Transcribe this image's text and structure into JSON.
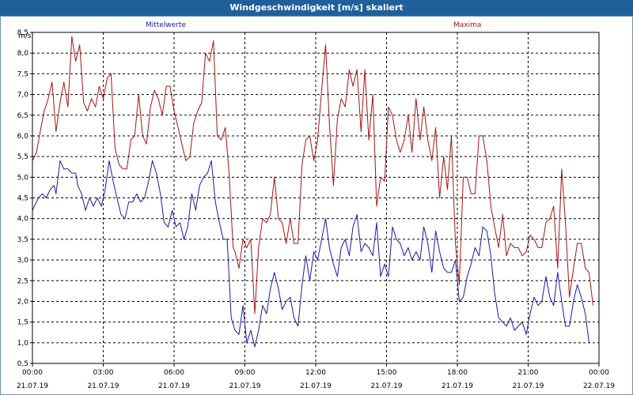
{
  "title": "Windgeschwindigkeit [m/s] skaliert",
  "chart_data": {
    "type": "line",
    "ylabel": "m/s",
    "ylim": [
      0.5,
      8.5
    ],
    "xlim": [
      0,
      24
    ],
    "grid": true,
    "yticks": [
      "8,5",
      "8,0",
      "7,5",
      "7,0",
      "6,5",
      "6,0",
      "5,5",
      "5,0",
      "4,5",
      "4,0",
      "3,5",
      "3,0",
      "2,5",
      "2,0",
      "1,5",
      "1,0",
      "0,5"
    ],
    "xticks": [
      {
        "time": "00:00",
        "date": "21.07.19"
      },
      {
        "time": "03:00",
        "date": "21.07.19"
      },
      {
        "time": "06:00",
        "date": "21.07.19"
      },
      {
        "time": "09:00",
        "date": "21.07.19"
      },
      {
        "time": "12:00",
        "date": "21.07.19"
      },
      {
        "time": "15:00",
        "date": "21.07.19"
      },
      {
        "time": "18:00",
        "date": "21.07.19"
      },
      {
        "time": "21:00",
        "date": "21.07.19"
      },
      {
        "time": "00:00",
        "date": "22.07.19"
      }
    ],
    "series": [
      {
        "name": "Mittelwerte",
        "color": "#1a1aa6",
        "points": [
          [
            0.0,
            4.2
          ],
          [
            0.25,
            4.5
          ],
          [
            0.42,
            4.6
          ],
          [
            0.58,
            4.5
          ],
          [
            0.75,
            4.7
          ],
          [
            0.92,
            4.8
          ],
          [
            1.0,
            4.6
          ],
          [
            1.17,
            5.4
          ],
          [
            1.33,
            5.2
          ],
          [
            1.5,
            5.2
          ],
          [
            1.67,
            5.1
          ],
          [
            1.83,
            5.1
          ],
          [
            1.92,
            4.8
          ],
          [
            2.08,
            4.6
          ],
          [
            2.25,
            4.2
          ],
          [
            2.42,
            4.5
          ],
          [
            2.58,
            4.3
          ],
          [
            2.75,
            4.5
          ],
          [
            2.92,
            4.3
          ],
          [
            3.08,
            4.7
          ],
          [
            3.25,
            5.4
          ],
          [
            3.42,
            4.9
          ],
          [
            3.58,
            4.5
          ],
          [
            3.75,
            4.1
          ],
          [
            3.92,
            4.0
          ],
          [
            4.08,
            4.4
          ],
          [
            4.25,
            4.4
          ],
          [
            4.42,
            4.6
          ],
          [
            4.58,
            4.4
          ],
          [
            4.75,
            4.5
          ],
          [
            4.92,
            4.9
          ],
          [
            5.08,
            5.4
          ],
          [
            5.25,
            5.1
          ],
          [
            5.42,
            4.6
          ],
          [
            5.58,
            3.9
          ],
          [
            5.75,
            3.8
          ],
          [
            5.92,
            4.2
          ],
          [
            6.08,
            3.8
          ],
          [
            6.25,
            3.9
          ],
          [
            6.42,
            3.5
          ],
          [
            6.58,
            3.8
          ],
          [
            6.75,
            4.6
          ],
          [
            6.92,
            4.2
          ],
          [
            7.08,
            4.8
          ],
          [
            7.25,
            5.0
          ],
          [
            7.42,
            5.1
          ],
          [
            7.58,
            5.4
          ],
          [
            7.75,
            4.4
          ],
          [
            7.92,
            3.9
          ],
          [
            8.08,
            3.5
          ],
          [
            8.25,
            3.5
          ],
          [
            8.42,
            1.6
          ],
          [
            8.58,
            1.3
          ],
          [
            8.75,
            1.2
          ],
          [
            8.92,
            1.9
          ],
          [
            9.08,
            1.0
          ],
          [
            9.25,
            1.3
          ],
          [
            9.42,
            0.9
          ],
          [
            9.58,
            1.3
          ],
          [
            9.75,
            1.9
          ],
          [
            9.92,
            1.7
          ],
          [
            10.08,
            2.3
          ],
          [
            10.25,
            2.7
          ],
          [
            10.42,
            2.3
          ],
          [
            10.58,
            1.8
          ],
          [
            10.75,
            2.0
          ],
          [
            10.92,
            2.1
          ],
          [
            11.08,
            1.6
          ],
          [
            11.25,
            1.4
          ],
          [
            11.42,
            2.4
          ],
          [
            11.58,
            3.1
          ],
          [
            11.75,
            2.5
          ],
          [
            11.92,
            3.2
          ],
          [
            12.08,
            3.0
          ],
          [
            12.25,
            3.5
          ],
          [
            12.42,
            4.0
          ],
          [
            12.58,
            3.3
          ],
          [
            12.75,
            2.9
          ],
          [
            12.92,
            2.6
          ],
          [
            13.08,
            3.3
          ],
          [
            13.25,
            3.5
          ],
          [
            13.42,
            3.1
          ],
          [
            13.58,
            3.8
          ],
          [
            13.75,
            4.1
          ],
          [
            13.92,
            3.2
          ],
          [
            14.08,
            3.4
          ],
          [
            14.25,
            3.3
          ],
          [
            14.42,
            3.1
          ],
          [
            14.58,
            3.9
          ],
          [
            14.75,
            2.6
          ],
          [
            14.92,
            2.9
          ],
          [
            15.08,
            2.6
          ],
          [
            15.25,
            3.8
          ],
          [
            15.42,
            3.5
          ],
          [
            15.58,
            3.4
          ],
          [
            15.75,
            3.1
          ],
          [
            15.92,
            3.3
          ],
          [
            16.08,
            3.0
          ],
          [
            16.25,
            3.2
          ],
          [
            16.42,
            3.0
          ],
          [
            16.58,
            3.8
          ],
          [
            16.75,
            3.4
          ],
          [
            16.92,
            2.7
          ],
          [
            17.08,
            3.7
          ],
          [
            17.25,
            3.2
          ],
          [
            17.42,
            2.8
          ],
          [
            17.58,
            2.7
          ],
          [
            17.75,
            2.7
          ],
          [
            17.92,
            3.0
          ],
          [
            18.08,
            2.0
          ],
          [
            18.25,
            2.1
          ],
          [
            18.42,
            2.6
          ],
          [
            18.58,
            2.9
          ],
          [
            18.75,
            3.3
          ],
          [
            18.92,
            3.1
          ],
          [
            19.08,
            3.8
          ],
          [
            19.25,
            3.7
          ],
          [
            19.42,
            3.1
          ],
          [
            19.58,
            2.2
          ],
          [
            19.75,
            1.6
          ],
          [
            19.92,
            1.5
          ],
          [
            20.08,
            1.4
          ],
          [
            20.25,
            1.6
          ],
          [
            20.42,
            1.3
          ],
          [
            20.58,
            1.4
          ],
          [
            20.75,
            1.5
          ],
          [
            20.92,
            1.2
          ],
          [
            21.08,
            1.7
          ],
          [
            21.25,
            2.1
          ],
          [
            21.42,
            1.9
          ],
          [
            21.58,
            2.0
          ],
          [
            21.75,
            2.6
          ],
          [
            21.92,
            2.1
          ],
          [
            22.08,
            1.9
          ],
          [
            22.25,
            2.7
          ],
          [
            22.42,
            2.0
          ],
          [
            22.58,
            1.4
          ],
          [
            22.75,
            1.4
          ],
          [
            22.92,
            2.0
          ],
          [
            23.08,
            2.4
          ],
          [
            23.25,
            2.1
          ],
          [
            23.42,
            1.7
          ],
          [
            23.58,
            1.0
          ]
        ]
      },
      {
        "name": "Maxima",
        "color": "#a31515",
        "points": [
          [
            0.0,
            5.4
          ],
          [
            0.17,
            5.6
          ],
          [
            0.33,
            6.1
          ],
          [
            0.5,
            6.6
          ],
          [
            0.67,
            6.9
          ],
          [
            0.83,
            7.3
          ],
          [
            1.0,
            6.1
          ],
          [
            1.17,
            6.8
          ],
          [
            1.33,
            7.3
          ],
          [
            1.5,
            6.7
          ],
          [
            1.67,
            8.4
          ],
          [
            1.83,
            7.8
          ],
          [
            2.0,
            8.2
          ],
          [
            2.17,
            6.8
          ],
          [
            2.33,
            6.6
          ],
          [
            2.5,
            6.9
          ],
          [
            2.67,
            6.7
          ],
          [
            2.83,
            7.2
          ],
          [
            3.0,
            6.9
          ],
          [
            3.17,
            7.4
          ],
          [
            3.33,
            7.5
          ],
          [
            3.5,
            5.7
          ],
          [
            3.67,
            5.3
          ],
          [
            3.83,
            5.2
          ],
          [
            4.0,
            5.2
          ],
          [
            4.17,
            5.9
          ],
          [
            4.33,
            6.0
          ],
          [
            4.5,
            7.0
          ],
          [
            4.67,
            6.0
          ],
          [
            4.83,
            5.8
          ],
          [
            5.0,
            6.7
          ],
          [
            5.17,
            7.1
          ],
          [
            5.33,
            6.9
          ],
          [
            5.5,
            6.5
          ],
          [
            5.67,
            7.2
          ],
          [
            5.83,
            7.2
          ],
          [
            6.0,
            6.6
          ],
          [
            6.17,
            6.2
          ],
          [
            6.33,
            5.8
          ],
          [
            6.5,
            5.4
          ],
          [
            6.67,
            5.5
          ],
          [
            6.83,
            6.3
          ],
          [
            7.0,
            6.6
          ],
          [
            7.17,
            6.8
          ],
          [
            7.33,
            8.0
          ],
          [
            7.5,
            7.8
          ],
          [
            7.67,
            8.3
          ],
          [
            7.83,
            6.0
          ],
          [
            8.0,
            5.9
          ],
          [
            8.17,
            6.2
          ],
          [
            8.33,
            5.1
          ],
          [
            8.5,
            3.3
          ],
          [
            8.58,
            3.2
          ],
          [
            8.75,
            2.8
          ],
          [
            8.92,
            3.5
          ],
          [
            9.08,
            3.3
          ],
          [
            9.25,
            3.5
          ],
          [
            9.42,
            1.7
          ],
          [
            9.58,
            3.3
          ],
          [
            9.75,
            4.0
          ],
          [
            9.92,
            3.9
          ],
          [
            10.08,
            4.1
          ],
          [
            10.25,
            5.0
          ],
          [
            10.42,
            4.0
          ],
          [
            10.58,
            3.9
          ],
          [
            10.75,
            3.4
          ],
          [
            10.92,
            4.0
          ],
          [
            11.08,
            3.4
          ],
          [
            11.25,
            3.4
          ],
          [
            11.42,
            5.3
          ],
          [
            11.58,
            5.9
          ],
          [
            11.75,
            6.0
          ],
          [
            11.92,
            5.4
          ],
          [
            12.08,
            5.9
          ],
          [
            12.25,
            7.1
          ],
          [
            12.42,
            8.2
          ],
          [
            12.58,
            6.3
          ],
          [
            12.75,
            4.8
          ],
          [
            12.92,
            6.4
          ],
          [
            13.08,
            6.9
          ],
          [
            13.25,
            6.7
          ],
          [
            13.42,
            7.6
          ],
          [
            13.58,
            7.2
          ],
          [
            13.75,
            7.6
          ],
          [
            13.92,
            6.1
          ],
          [
            14.08,
            7.6
          ],
          [
            14.25,
            5.9
          ],
          [
            14.42,
            7.0
          ],
          [
            14.58,
            4.3
          ],
          [
            14.75,
            5.0
          ],
          [
            14.92,
            4.9
          ],
          [
            15.08,
            6.7
          ],
          [
            15.25,
            6.5
          ],
          [
            15.42,
            5.9
          ],
          [
            15.58,
            5.6
          ],
          [
            15.75,
            5.9
          ],
          [
            15.92,
            6.5
          ],
          [
            16.08,
            5.6
          ],
          [
            16.25,
            6.9
          ],
          [
            16.42,
            5.9
          ],
          [
            16.58,
            6.7
          ],
          [
            16.75,
            5.9
          ],
          [
            16.92,
            5.4
          ],
          [
            17.08,
            6.2
          ],
          [
            17.25,
            4.5
          ],
          [
            17.42,
            5.5
          ],
          [
            17.58,
            4.7
          ],
          [
            17.75,
            6.0
          ],
          [
            17.92,
            3.4
          ],
          [
            18.08,
            2.4
          ],
          [
            18.25,
            5.0
          ],
          [
            18.42,
            5.0
          ],
          [
            18.58,
            4.6
          ],
          [
            18.75,
            4.6
          ],
          [
            18.92,
            6.0
          ],
          [
            19.08,
            6.0
          ],
          [
            19.25,
            5.4
          ],
          [
            19.42,
            4.3
          ],
          [
            19.58,
            3.8
          ],
          [
            19.75,
            3.3
          ],
          [
            19.92,
            4.1
          ],
          [
            20.08,
            3.1
          ],
          [
            20.25,
            3.4
          ],
          [
            20.42,
            3.3
          ],
          [
            20.58,
            3.3
          ],
          [
            20.75,
            3.1
          ],
          [
            20.92,
            3.2
          ],
          [
            21.08,
            3.6
          ],
          [
            21.25,
            3.5
          ],
          [
            21.42,
            3.3
          ],
          [
            21.58,
            3.3
          ],
          [
            21.75,
            3.9
          ],
          [
            21.92,
            4.0
          ],
          [
            22.08,
            4.3
          ],
          [
            22.25,
            2.8
          ],
          [
            22.42,
            5.2
          ],
          [
            22.58,
            3.9
          ],
          [
            22.75,
            2.1
          ],
          [
            22.92,
            2.8
          ],
          [
            23.08,
            3.4
          ],
          [
            23.25,
            3.4
          ],
          [
            23.42,
            2.8
          ],
          [
            23.58,
            2.7
          ],
          [
            23.75,
            1.9
          ]
        ]
      }
    ]
  }
}
